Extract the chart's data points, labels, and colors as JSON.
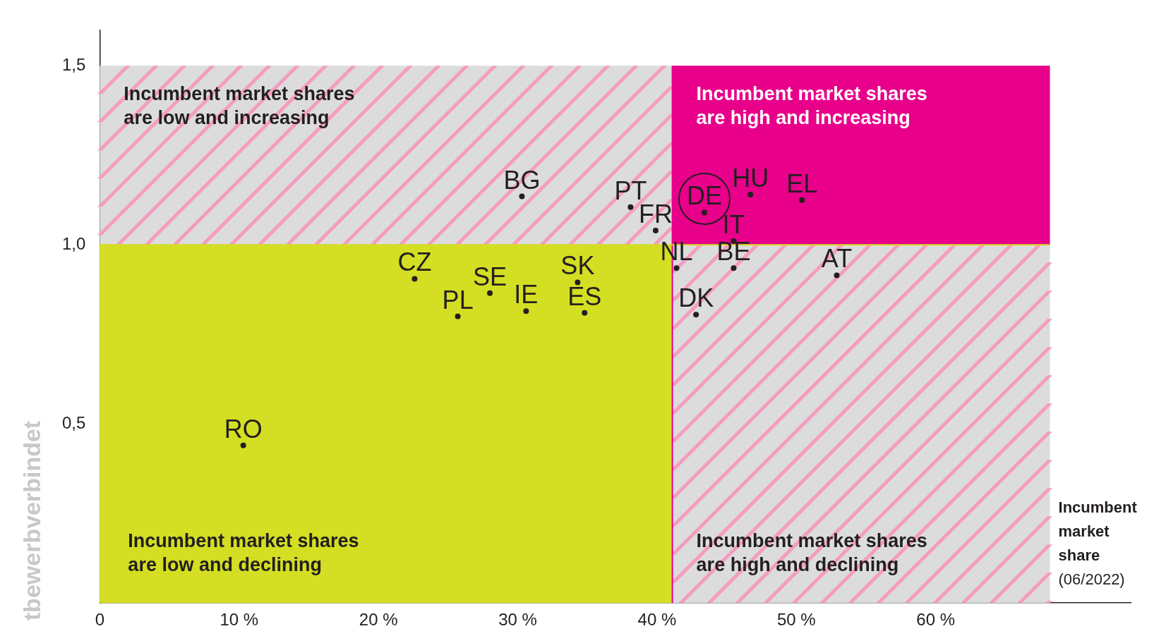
{
  "chart_data": {
    "type": "scatter",
    "xlabel": "Incumbent market share (06/2022)",
    "ylabel": "tbewerbverbindet",
    "series": [
      {
        "color": "#231f20",
        "x": [
          30.3,
          38.1,
          39.9,
          43.4,
          46.7,
          50.4,
          45.5,
          41.4,
          45.5,
          52.9,
          42.8,
          22.6,
          28.0,
          25.7,
          30.6,
          34.3,
          34.8,
          10.3
        ],
        "values": [
          1.135,
          1.105,
          1.04,
          1.09,
          1.14,
          1.125,
          1.01,
          0.935,
          0.935,
          0.915,
          0.805,
          0.905,
          0.865,
          0.8,
          0.815,
          0.895,
          0.81,
          0.44
        ]
      }
    ],
    "marker": "circle",
    "annotations": [
      "Incumbent market shares are low and increasing",
      "Incumbent market shares are high and increasing",
      "Incumbent market shares are low and declining",
      "Incumbent market shares are high and declining",
      {
        "text": "BG",
        "x": 30.3,
        "y": 1.135
      },
      {
        "text": "PT",
        "x": 38.1,
        "y": 1.105
      },
      {
        "text": "FR",
        "x": 39.9,
        "y": 1.04
      },
      {
        "text": "DE",
        "x": 43.4,
        "y": 1.09
      },
      {
        "text": "HU",
        "x": 46.7,
        "y": 1.14
      },
      {
        "text": "EL",
        "x": 50.4,
        "y": 1.125
      },
      {
        "text": "IT",
        "x": 45.5,
        "y": 1.01
      },
      {
        "text": "NL",
        "x": 41.4,
        "y": 0.935
      },
      {
        "text": "BE",
        "x": 45.5,
        "y": 0.935
      },
      {
        "text": "AT",
        "x": 52.9,
        "y": 0.915
      },
      {
        "text": "DK",
        "x": 42.8,
        "y": 0.805
      },
      {
        "text": "CZ",
        "x": 22.6,
        "y": 0.905
      },
      {
        "text": "SE",
        "x": 28.0,
        "y": 0.865
      },
      {
        "text": "PL",
        "x": 25.7,
        "y": 0.8
      },
      {
        "text": "IE",
        "x": 30.6,
        "y": 0.815
      },
      {
        "text": "SK",
        "x": 34.3,
        "y": 0.895
      },
      {
        "text": "ES",
        "x": 34.8,
        "y": 0.81
      },
      {
        "text": "RO",
        "x": 10.3,
        "y": 0.44
      }
    ],
    "bands": [
      {
        "axis": "x",
        "from": 0,
        "to": 68.2,
        "color": "#dcdcdc"
      }
    ],
    "ref_lines": [
      {
        "axis": "x",
        "value": 41.1,
        "color": "#e8008a"
      },
      {
        "axis": "y",
        "value": 1.0,
        "color": "#d4de22"
      }
    ],
    "xlim": [
      0,
      74
    ],
    "xticks": [
      {
        "value": 0,
        "label": "0"
      },
      {
        "value": 10,
        "label": "10 %"
      },
      {
        "value": 20,
        "label": "20 %"
      },
      {
        "value": 30,
        "label": "30 %"
      },
      {
        "value": 40,
        "label": "40 %"
      },
      {
        "value": 50,
        "label": "50 %"
      },
      {
        "value": 60,
        "label": "60 %"
      }
    ],
    "ylim": [
      0,
      1.6
    ],
    "yticks": [
      {
        "value": 0.5,
        "label": "0,5"
      },
      {
        "value": 1.0,
        "label": "1,0"
      },
      {
        "value": 1.5,
        "label": "1,5"
      }
    ],
    "grid": false,
    "legend": false
  }
}
